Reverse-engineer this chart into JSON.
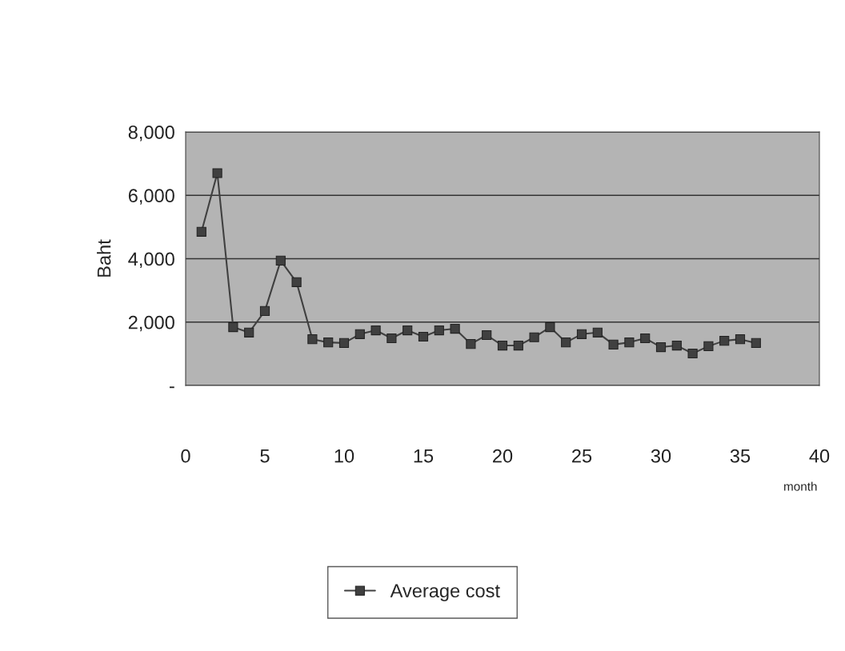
{
  "chart_data": {
    "type": "line",
    "xlabel": "month",
    "ylabel": "Baht",
    "x": [
      1,
      2,
      3,
      4,
      5,
      6,
      7,
      8,
      9,
      10,
      11,
      12,
      13,
      14,
      15,
      16,
      17,
      18,
      19,
      20,
      21,
      22,
      23,
      24,
      25,
      26,
      27,
      28,
      29,
      30,
      31,
      32,
      33,
      34,
      35,
      36
    ],
    "series": [
      {
        "name": "Average cost",
        "color": "#404040",
        "values": [
          4850,
          6700,
          1840,
          1670,
          2350,
          3940,
          3260,
          1460,
          1360,
          1340,
          1620,
          1740,
          1490,
          1740,
          1540,
          1740,
          1790,
          1310,
          1590,
          1260,
          1260,
          1520,
          1840,
          1360,
          1620,
          1670,
          1290,
          1360,
          1490,
          1210,
          1260,
          1010,
          1240,
          1410,
          1460,
          1340
        ]
      }
    ],
    "xlim": [
      0,
      40
    ],
    "xticks": [
      0,
      5,
      10,
      15,
      20,
      25,
      30,
      35,
      40
    ],
    "ylim": [
      0,
      8000
    ],
    "yticks": [
      {
        "value": 0,
        "label": "-"
      },
      {
        "value": 2000,
        "label": "2,000"
      },
      {
        "value": 4000,
        "label": "4,000"
      },
      {
        "value": 6000,
        "label": "6,000"
      },
      {
        "value": 8000,
        "label": "8,000"
      }
    ],
    "grid": "y",
    "legend": "bottom",
    "marker": "square",
    "line_style": "solid"
  }
}
